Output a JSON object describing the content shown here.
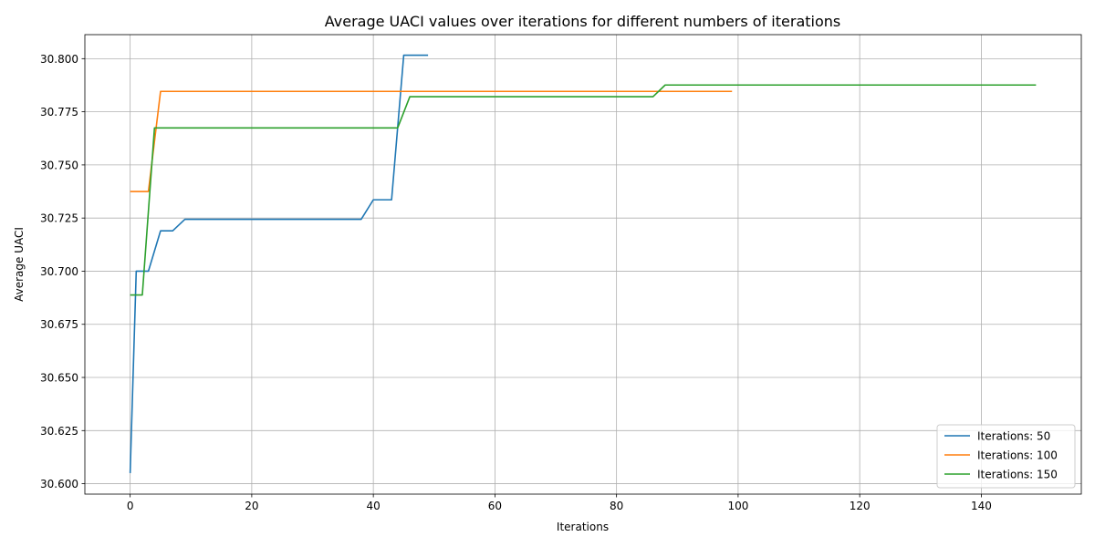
{
  "chart_data": {
    "type": "line",
    "title": "Average UACI values over iterations for different numbers of iterations",
    "xlabel": "Iterations",
    "ylabel": "Average UACI",
    "xlim": [
      -7.45,
      156.45
    ],
    "ylim": [
      30.5951,
      30.8113
    ],
    "xticks": [
      0,
      20,
      40,
      60,
      80,
      100,
      120,
      140
    ],
    "yticks": [
      30.6,
      30.625,
      30.65,
      30.675,
      30.7,
      30.725,
      30.75,
      30.775,
      30.8
    ],
    "grid": true,
    "legend_position": "lower-right",
    "series": [
      {
        "name": "Iterations: 50",
        "color": "#1f77b4",
        "points": [
          [
            0,
            30.605
          ],
          [
            1,
            30.7
          ],
          [
            3,
            30.7
          ],
          [
            5,
            30.719
          ],
          [
            7,
            30.719
          ],
          [
            9,
            30.7244
          ],
          [
            38,
            30.7244
          ],
          [
            40,
            30.7336
          ],
          [
            43,
            30.7336
          ],
          [
            45,
            30.8016
          ],
          [
            49,
            30.8016
          ]
        ]
      },
      {
        "name": "Iterations: 100",
        "color": "#ff7f0e",
        "points": [
          [
            0,
            30.7375
          ],
          [
            3,
            30.7375
          ],
          [
            5,
            30.7846
          ],
          [
            99,
            30.7846
          ]
        ]
      },
      {
        "name": "Iterations: 150",
        "color": "#2ca02c",
        "points": [
          [
            0,
            30.6888
          ],
          [
            2,
            30.6888
          ],
          [
            4,
            30.7674
          ],
          [
            44,
            30.7674
          ],
          [
            46,
            30.7821
          ],
          [
            86,
            30.7821
          ],
          [
            88,
            30.7876
          ],
          [
            149,
            30.7876
          ]
        ]
      }
    ]
  }
}
